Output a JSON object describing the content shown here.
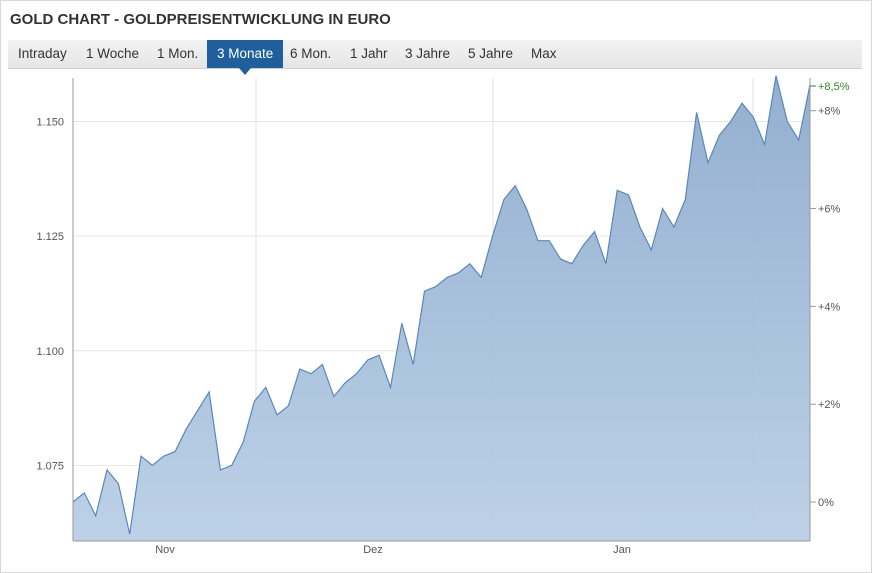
{
  "title": "GOLD CHART - GOLDPREISENTWICKLUNG IN EURO",
  "tabs": [
    {
      "label": "Intraday",
      "active": false
    },
    {
      "label": "1 Woche",
      "active": false
    },
    {
      "label": "1 Mon.",
      "active": false
    },
    {
      "label": "3 Monate",
      "active": true
    },
    {
      "label": "6 Mon.",
      "active": false
    },
    {
      "label": "1 Jahr",
      "active": false
    },
    {
      "label": "3 Jahre",
      "active": false
    },
    {
      "label": "5 Jahre",
      "active": false
    },
    {
      "label": "Max",
      "active": false
    }
  ],
  "chart_data": {
    "type": "area",
    "title": "",
    "xlabel": "",
    "ylabel": "",
    "x_ticks": [
      "Nov",
      "Dez",
      "Jan"
    ],
    "y_left_ticks": [
      {
        "value": 1.075,
        "label": "1.075"
      },
      {
        "value": 1.1,
        "label": "1.100"
      },
      {
        "value": 1.125,
        "label": "1.125"
      },
      {
        "value": 1.15,
        "label": "1.150"
      }
    ],
    "y_right_ticks": [
      {
        "value": 0,
        "label": "0%"
      },
      {
        "value": 2,
        "label": "+2%"
      },
      {
        "value": 4,
        "label": "+4%"
      },
      {
        "value": 6,
        "label": "+6%"
      },
      {
        "value": 8,
        "label": "+8%"
      }
    ],
    "current_change_label": "+8,5%",
    "ylim": [
      1.0585,
      1.1595
    ],
    "grid": true,
    "colors": {
      "fill": "#a6bfdb",
      "line": "#5b87b8",
      "up": "#2a8a2a"
    },
    "series": [
      {
        "values": [
          1.067,
          1.069,
          1.064,
          1.074,
          1.071,
          1.06,
          1.077,
          1.075,
          1.077,
          1.078,
          1.083,
          1.087,
          1.091,
          1.074,
          1.075,
          1.08,
          1.089,
          1.092,
          1.086,
          1.088,
          1.096,
          1.095,
          1.097,
          1.09,
          1.093,
          1.095,
          1.098,
          1.099,
          1.092,
          1.106,
          1.097,
          1.113,
          1.114,
          1.116,
          1.117,
          1.119,
          1.116,
          1.125,
          1.133,
          1.136,
          1.131,
          1.124,
          1.124,
          1.12,
          1.119,
          1.123,
          1.126,
          1.119,
          1.135,
          1.134,
          1.127,
          1.122,
          1.131,
          1.127,
          1.133,
          1.152,
          1.141,
          1.147,
          1.15,
          1.154,
          1.151,
          1.145,
          1.16,
          1.15,
          1.146,
          1.158
        ]
      }
    ]
  }
}
